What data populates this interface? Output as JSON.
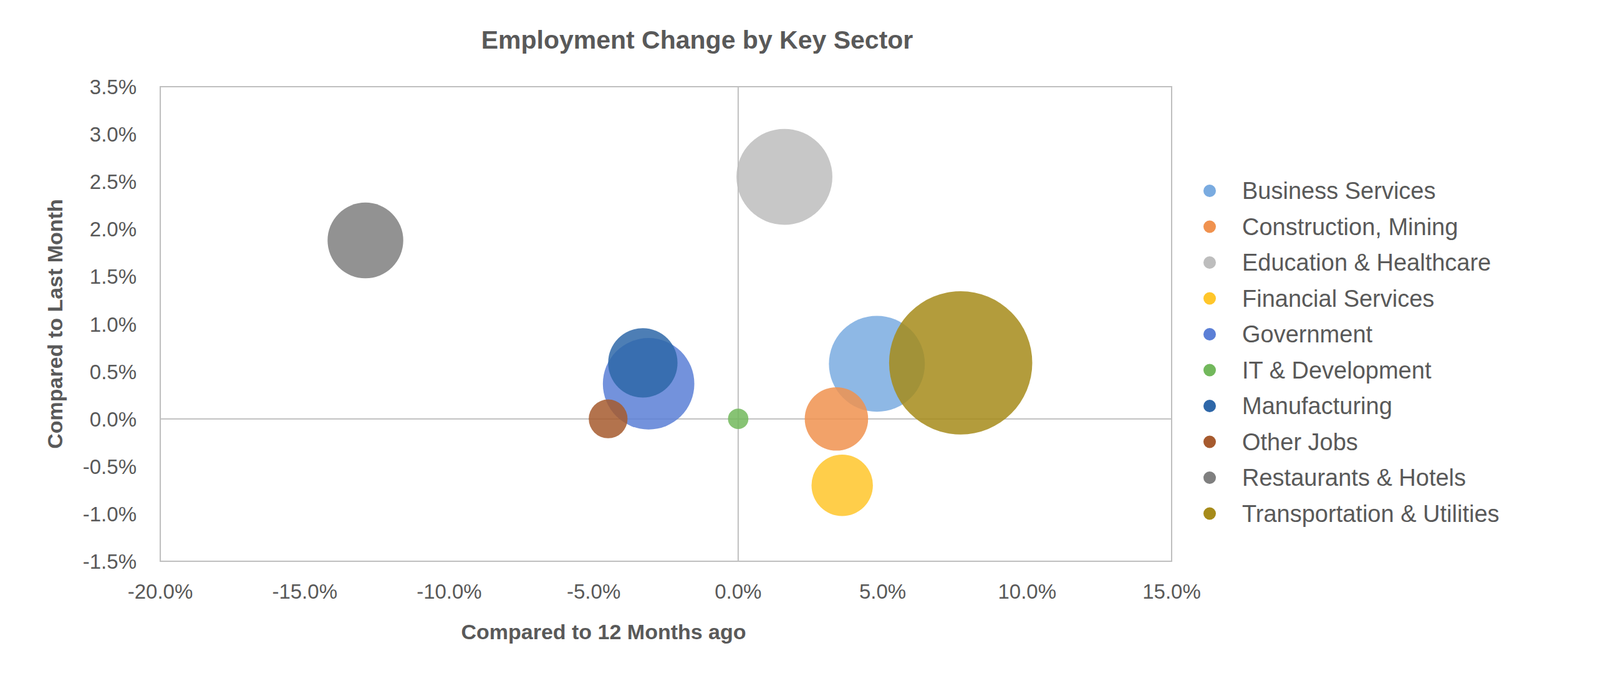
{
  "chart_data": {
    "type": "bubble",
    "title": "Employment Change by Key Sector",
    "x_label": "Compared to 12 Months ago",
    "y_label": "Compared to Last Month",
    "xlim": [
      -20,
      15
    ],
    "xticks": [
      {
        "value": -20,
        "label": "-20.0%"
      },
      {
        "value": -15,
        "label": "-15.0%"
      },
      {
        "value": -10,
        "label": "-10.0%"
      },
      {
        "value": -5,
        "label": "-5.0%"
      },
      {
        "value": 0,
        "label": "0.0%"
      },
      {
        "value": 5,
        "label": "5.0%"
      },
      {
        "value": 10,
        "label": "10.0%"
      },
      {
        "value": 15,
        "label": "15.0%"
      }
    ],
    "ylim": [
      -1.5,
      3.5
    ],
    "yticks": [
      {
        "value": -1.5,
        "label": "-1.5%"
      },
      {
        "value": -1,
        "label": "-1.0%"
      },
      {
        "value": -0.5,
        "label": "-0.5%"
      },
      {
        "value": 0,
        "label": "0.0%"
      },
      {
        "value": 0.5,
        "label": "0.5%"
      },
      {
        "value": 1,
        "label": "1.0%"
      },
      {
        "value": 1.5,
        "label": "1.5%"
      },
      {
        "value": 2,
        "label": "2.0%"
      },
      {
        "value": 2.5,
        "label": "2.5%"
      },
      {
        "value": 3,
        "label": "3.0%"
      },
      {
        "value": 3.5,
        "label": "3.5%"
      }
    ],
    "grid": false,
    "legend": "right",
    "series": [
      {
        "name": "Business Services",
        "color": "#7aabe0",
        "x": [
          4.8
        ],
        "values": [
          0.58
        ],
        "sizes": [
          2200
        ]
      },
      {
        "name": "Construction, Mining",
        "color": "#f0924f",
        "x": [
          3.4
        ],
        "values": [
          0
        ],
        "sizes": [
          960
        ]
      },
      {
        "name": "Education & Healthcare",
        "color": "#bdbdbd",
        "x": [
          1.6
        ],
        "values": [
          2.55
        ],
        "sizes": [
          2200
        ]
      },
      {
        "name": "Financial Services",
        "color": "#ffc62a",
        "x": [
          3.6
        ],
        "values": [
          -0.7
        ],
        "sizes": [
          900
        ]
      },
      {
        "name": "Government",
        "color": "#5b7fd6",
        "x": [
          -3.1
        ],
        "values": [
          0.37
        ],
        "sizes": [
          2000
        ]
      },
      {
        "name": "IT & Development",
        "color": "#72b85c",
        "x": [
          0
        ],
        "values": [
          0
        ],
        "sizes": [
          100
        ]
      },
      {
        "name": "Manufacturing",
        "color": "#2e67a8",
        "x": [
          -3.3
        ],
        "values": [
          0.59
        ],
        "sizes": [
          1150
        ]
      },
      {
        "name": "Other Jobs",
        "color": "#a65a2e",
        "x": [
          -4.5
        ],
        "values": [
          0
        ],
        "sizes": [
          360
        ]
      },
      {
        "name": "Restaurants & Hotels",
        "color": "#7f7f7f",
        "x": [
          -12.9
        ],
        "values": [
          1.88
        ],
        "sizes": [
          1370
        ]
      },
      {
        "name": "Transportation & Utilities",
        "color": "#a68b1a",
        "x": [
          7.7
        ],
        "values": [
          0.59
        ],
        "sizes": [
          4900
        ]
      }
    ]
  }
}
